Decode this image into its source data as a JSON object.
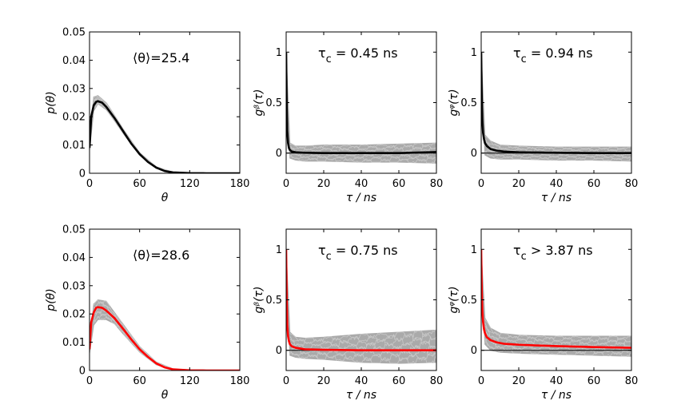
{
  "colors": {
    "black": "#000000",
    "red": "#ff0000",
    "gray": "#aaaaaa"
  },
  "chart_data": [
    {
      "type": "line",
      "row": 0,
      "col": 0,
      "annotation": "⟨θ⟩=25.4",
      "xlabel": "θ",
      "ylabel": "p(θ)",
      "xlim": [
        0,
        180
      ],
      "ylim": [
        0,
        0.05
      ],
      "xticks": [
        0,
        60,
        120,
        180
      ],
      "xtick_labels": [
        "0",
        "60",
        "120",
        "180"
      ],
      "yticks": [
        0,
        0.01,
        0.02,
        0.03,
        0.04,
        0.05
      ],
      "ytick_labels": [
        "0",
        "0.01",
        "0.02",
        "0.03",
        "0.04",
        "0.05"
      ],
      "mean_color": "black",
      "series": [
        {
          "name": "mean",
          "x": [
            0,
            2,
            5,
            8,
            10,
            15,
            20,
            30,
            40,
            50,
            60,
            70,
            80,
            90,
            100,
            120,
            140,
            160,
            180
          ],
          "y": [
            0.009,
            0.02,
            0.024,
            0.0253,
            0.0255,
            0.025,
            0.0235,
            0.0195,
            0.015,
            0.0105,
            0.0068,
            0.004,
            0.002,
            0.0008,
            0.0003,
            5e-05,
            0,
            0,
            0
          ]
        },
        {
          "name": "spread",
          "x": [
            0,
            5,
            10,
            20,
            30,
            40,
            60,
            80,
            100
          ],
          "y_low": [
            0.008,
            0.022,
            0.0245,
            0.0225,
            0.0185,
            0.0142,
            0.0063,
            0.0017,
            0.0002
          ],
          "y_high": [
            0.012,
            0.027,
            0.0275,
            0.025,
            0.0205,
            0.0158,
            0.0073,
            0.0023,
            0.0004
          ]
        }
      ]
    },
    {
      "type": "line",
      "row": 0,
      "col": 1,
      "annotation": "τc = 0.45 ns",
      "tau_symbol": "τ",
      "tau_sub": "c",
      "tau_rest": " = 0.45 ns",
      "xlabel": "τ / ns",
      "ylabel": "gᵝ(τ)",
      "xlim": [
        0,
        80
      ],
      "ylim": [
        -0.2,
        1.2
      ],
      "xticks": [
        0,
        20,
        40,
        60,
        80
      ],
      "xtick_labels": [
        "0",
        "20",
        "40",
        "60",
        "80"
      ],
      "yticks": [
        0,
        0.5,
        1
      ],
      "ytick_labels": [
        "0",
        "0.5",
        "1"
      ],
      "mean_color": "black",
      "series": [
        {
          "name": "mean",
          "x": [
            0,
            0.3,
            0.6,
            1,
            1.5,
            2,
            3,
            5,
            10,
            20,
            40,
            60,
            80
          ],
          "y": [
            1.0,
            0.45,
            0.22,
            0.1,
            0.05,
            0.03,
            0.015,
            0.008,
            0.003,
            0.0,
            0.0,
            0.0,
            0.01
          ]
        },
        {
          "name": "spread",
          "x": [
            0,
            2,
            5,
            10,
            20,
            40,
            60,
            80
          ],
          "y_low": [
            0.9,
            -0.05,
            -0.07,
            -0.08,
            -0.08,
            -0.09,
            -0.09,
            -0.1
          ],
          "y_high": [
            1.0,
            0.1,
            0.07,
            0.07,
            0.08,
            0.08,
            0.09,
            0.1
          ]
        }
      ]
    },
    {
      "type": "line",
      "row": 0,
      "col": 2,
      "annotation": "τc = 0.94 ns",
      "tau_symbol": "τ",
      "tau_sub": "c",
      "tau_rest": " = 0.94 ns",
      "xlabel": "τ / ns",
      "ylabel": "gᵠ(τ)",
      "xlim": [
        0,
        80
      ],
      "ylim": [
        -0.2,
        1.2
      ],
      "xticks": [
        0,
        20,
        40,
        60,
        80
      ],
      "xtick_labels": [
        "0",
        "20",
        "40",
        "60",
        "80"
      ],
      "yticks": [
        0,
        0.5,
        1
      ],
      "ytick_labels": [
        "0",
        "0.5",
        "1"
      ],
      "mean_color": "black",
      "series": [
        {
          "name": "mean",
          "x": [
            0,
            0.3,
            0.6,
            1,
            1.5,
            2,
            3,
            5,
            8,
            12,
            20,
            40,
            60,
            80
          ],
          "y": [
            1.0,
            0.55,
            0.33,
            0.2,
            0.14,
            0.1,
            0.07,
            0.04,
            0.025,
            0.015,
            0.008,
            0.003,
            0.0,
            0.0
          ]
        },
        {
          "name": "spread",
          "x": [
            0,
            2,
            5,
            10,
            20,
            40,
            60,
            80
          ],
          "y_low": [
            0.9,
            -0.02,
            -0.05,
            -0.06,
            -0.06,
            -0.07,
            -0.07,
            -0.08
          ],
          "y_high": [
            1.0,
            0.18,
            0.12,
            0.08,
            0.07,
            0.06,
            0.06,
            0.06
          ]
        }
      ]
    },
    {
      "type": "line",
      "row": 1,
      "col": 0,
      "annotation": "⟨θ⟩=28.6",
      "xlabel": "θ",
      "ylabel": "p(θ)",
      "xlim": [
        0,
        180
      ],
      "ylim": [
        0,
        0.05
      ],
      "xticks": [
        0,
        60,
        120,
        180
      ],
      "xtick_labels": [
        "0",
        "60",
        "120",
        "180"
      ],
      "yticks": [
        0,
        0.01,
        0.02,
        0.03,
        0.04,
        0.05
      ],
      "ytick_labels": [
        "0",
        "0.01",
        "0.02",
        "0.03",
        "0.04",
        "0.05"
      ],
      "mean_color": "red",
      "series": [
        {
          "name": "mean",
          "x": [
            0,
            2,
            5,
            8,
            10,
            15,
            20,
            30,
            40,
            50,
            60,
            70,
            80,
            90,
            100,
            120,
            140,
            160,
            180
          ],
          "y": [
            0.0075,
            0.017,
            0.0205,
            0.0222,
            0.0224,
            0.0222,
            0.0212,
            0.0185,
            0.0148,
            0.011,
            0.0075,
            0.0048,
            0.0025,
            0.0011,
            0.0004,
            5e-05,
            0,
            0,
            0
          ]
        },
        {
          "name": "spread",
          "x": [
            0,
            5,
            10,
            20,
            30,
            40,
            60,
            80,
            100,
            120
          ],
          "y_low": [
            0.006,
            0.016,
            0.018,
            0.018,
            0.0165,
            0.013,
            0.0065,
            0.002,
            0.0003,
            0
          ],
          "y_high": [
            0.01,
            0.0235,
            0.025,
            0.0245,
            0.0205,
            0.0165,
            0.0085,
            0.003,
            0.0006,
            0.0001
          ]
        }
      ]
    },
    {
      "type": "line",
      "row": 1,
      "col": 1,
      "annotation": "τc = 0.75 ns",
      "tau_symbol": "τ",
      "tau_sub": "c",
      "tau_rest": " = 0.75 ns",
      "xlabel": "τ / ns",
      "ylabel": "gᵝ(τ)",
      "xlim": [
        0,
        80
      ],
      "ylim": [
        -0.2,
        1.2
      ],
      "xticks": [
        0,
        20,
        40,
        60,
        80
      ],
      "xtick_labels": [
        "0",
        "20",
        "40",
        "60",
        "80"
      ],
      "yticks": [
        0,
        0.5,
        1
      ],
      "ytick_labels": [
        "0",
        "0.5",
        "1"
      ],
      "mean_color": "red",
      "series": [
        {
          "name": "mean",
          "x": [
            0,
            0.3,
            0.6,
            1,
            1.5,
            2,
            3,
            5,
            10,
            20,
            40,
            60,
            80
          ],
          "y": [
            1.0,
            0.5,
            0.25,
            0.14,
            0.09,
            0.06,
            0.04,
            0.025,
            0.01,
            0.005,
            0.0,
            0.0,
            0.0
          ]
        },
        {
          "name": "spread",
          "x": [
            0,
            2,
            5,
            10,
            20,
            40,
            60,
            80
          ],
          "y_low": [
            0.9,
            -0.05,
            -0.07,
            -0.08,
            -0.09,
            -0.12,
            -0.13,
            -0.12
          ],
          "y_high": [
            1.0,
            0.18,
            0.13,
            0.12,
            0.13,
            0.16,
            0.18,
            0.2
          ]
        }
      ]
    },
    {
      "type": "line",
      "row": 1,
      "col": 2,
      "annotation": "τc > 3.87 ns",
      "tau_symbol": "τ",
      "tau_sub": "c",
      "tau_rest": " > 3.87 ns",
      "xlabel": "τ / ns",
      "ylabel": "gᵠ(τ)",
      "xlim": [
        0,
        80
      ],
      "ylim": [
        -0.2,
        1.2
      ],
      "xticks": [
        0,
        20,
        40,
        60,
        80
      ],
      "xtick_labels": [
        "0",
        "20",
        "40",
        "60",
        "80"
      ],
      "yticks": [
        0,
        0.5,
        1
      ],
      "ytick_labels": [
        "0",
        "0.5",
        "1"
      ],
      "mean_color": "red",
      "series": [
        {
          "name": "mean",
          "x": [
            0,
            0.3,
            0.6,
            1,
            1.5,
            2,
            3,
            5,
            8,
            12,
            20,
            30,
            40,
            60,
            80
          ],
          "y": [
            1.0,
            0.6,
            0.4,
            0.28,
            0.21,
            0.17,
            0.13,
            0.1,
            0.08,
            0.065,
            0.055,
            0.048,
            0.042,
            0.032,
            0.025
          ]
        },
        {
          "name": "spread",
          "x": [
            0,
            2,
            5,
            10,
            20,
            40,
            60,
            80
          ],
          "y_low": [
            0.9,
            0.06,
            0.0,
            -0.02,
            -0.03,
            -0.04,
            -0.05,
            -0.06
          ],
          "y_high": [
            1.0,
            0.32,
            0.22,
            0.17,
            0.15,
            0.14,
            0.14,
            0.14
          ]
        }
      ]
    }
  ]
}
